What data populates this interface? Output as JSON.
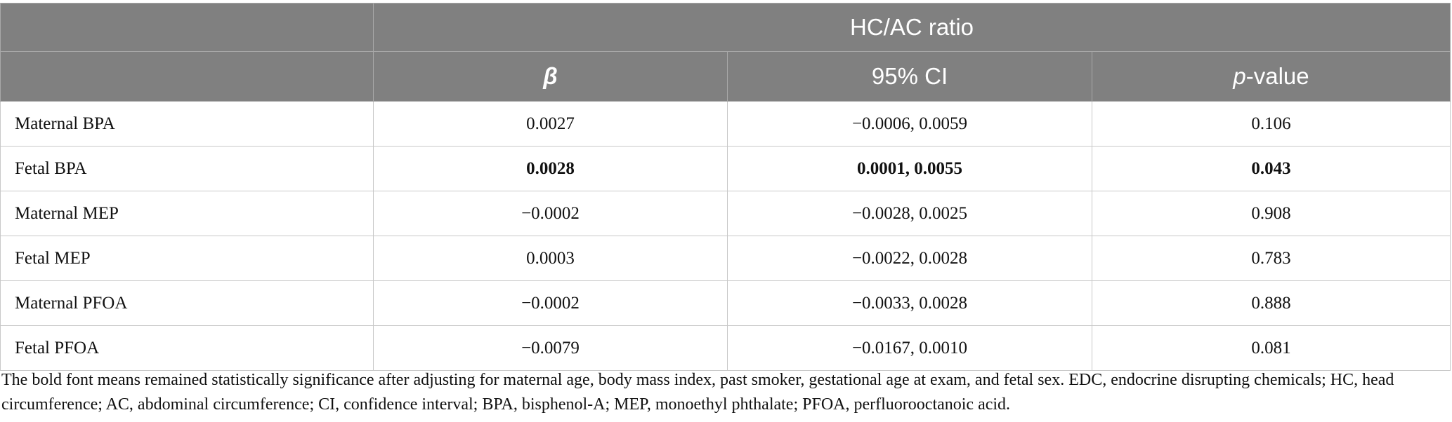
{
  "table": {
    "group_header": "HC/AC ratio",
    "columns": [
      {
        "text": "β"
      },
      {
        "text": "95% CI"
      },
      {
        "italic": "p",
        "text": "-value"
      }
    ],
    "rows": [
      {
        "label": "Maternal BPA",
        "cells": [
          "0.0027",
          "−0.0006, 0.0059",
          "0.106"
        ],
        "bold": false
      },
      {
        "label": "Fetal BPA",
        "cells": [
          "0.0028",
          "0.0001, 0.0055",
          "0.043"
        ],
        "bold": true
      },
      {
        "label": "Maternal MEP",
        "cells": [
          "−0.0002",
          "−0.0028, 0.0025",
          "0.908"
        ],
        "bold": false
      },
      {
        "label": "Fetal MEP",
        "cells": [
          "0.0003",
          "−0.0022, 0.0028",
          "0.783"
        ],
        "bold": false
      },
      {
        "label": "Maternal PFOA",
        "cells": [
          "−0.0002",
          "−0.0033, 0.0028",
          "0.888"
        ],
        "bold": false
      },
      {
        "label": "Fetal PFOA",
        "cells": [
          "−0.0079",
          "−0.0167, 0.0010",
          "0.081"
        ],
        "bold": false
      }
    ]
  },
  "footnote": "The bold font means remained statistically significance after adjusting for maternal age, body mass index, past smoker, gestational age at exam, and fetal sex. EDC, endocrine disrupting chemicals; HC, head circumference; AC, abdominal circumference; CI, confidence interval; BPA, bisphenol-A; MEP, monoethyl phthalate; PFOA, perfluorooctanoic acid."
}
